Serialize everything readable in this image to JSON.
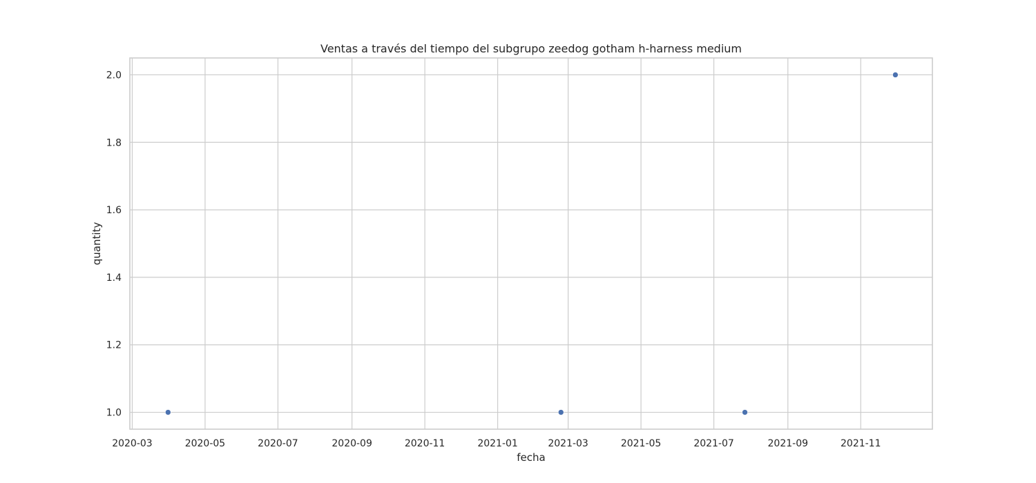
{
  "chart_data": {
    "type": "scatter",
    "title": "Ventas a través del tiempo del subgrupo zeedog gotham h-harness medium",
    "xlabel": "fecha",
    "ylabel": "quantity",
    "x_axis_type": "date",
    "xlim": [
      "2020-02-28",
      "2021-12-31"
    ],
    "ylim": [
      0.95,
      2.05
    ],
    "grid": true,
    "x_ticks": [
      "2020-03-01",
      "2020-05-01",
      "2020-07-01",
      "2020-09-01",
      "2020-11-01",
      "2021-01-01",
      "2021-03-01",
      "2021-05-01",
      "2021-07-01",
      "2021-09-01",
      "2021-11-01"
    ],
    "x_tick_labels": [
      "2020-03",
      "2020-05",
      "2020-07",
      "2020-09",
      "2020-11",
      "2021-01",
      "2021-03",
      "2021-05",
      "2021-07",
      "2021-09",
      "2021-11"
    ],
    "y_ticks": [
      1.0,
      1.2,
      1.4,
      1.6,
      1.8,
      2.0
    ],
    "y_tick_labels": [
      "1.0",
      "1.2",
      "1.4",
      "1.6",
      "1.8",
      "2.0"
    ],
    "series": [
      {
        "color": "#4c72b0",
        "points": [
          {
            "x": "2020-03-31",
            "y": 1
          },
          {
            "x": "2021-02-23",
            "y": 1
          },
          {
            "x": "2021-07-27",
            "y": 1
          },
          {
            "x": "2021-11-30",
            "y": 2
          }
        ]
      }
    ]
  }
}
